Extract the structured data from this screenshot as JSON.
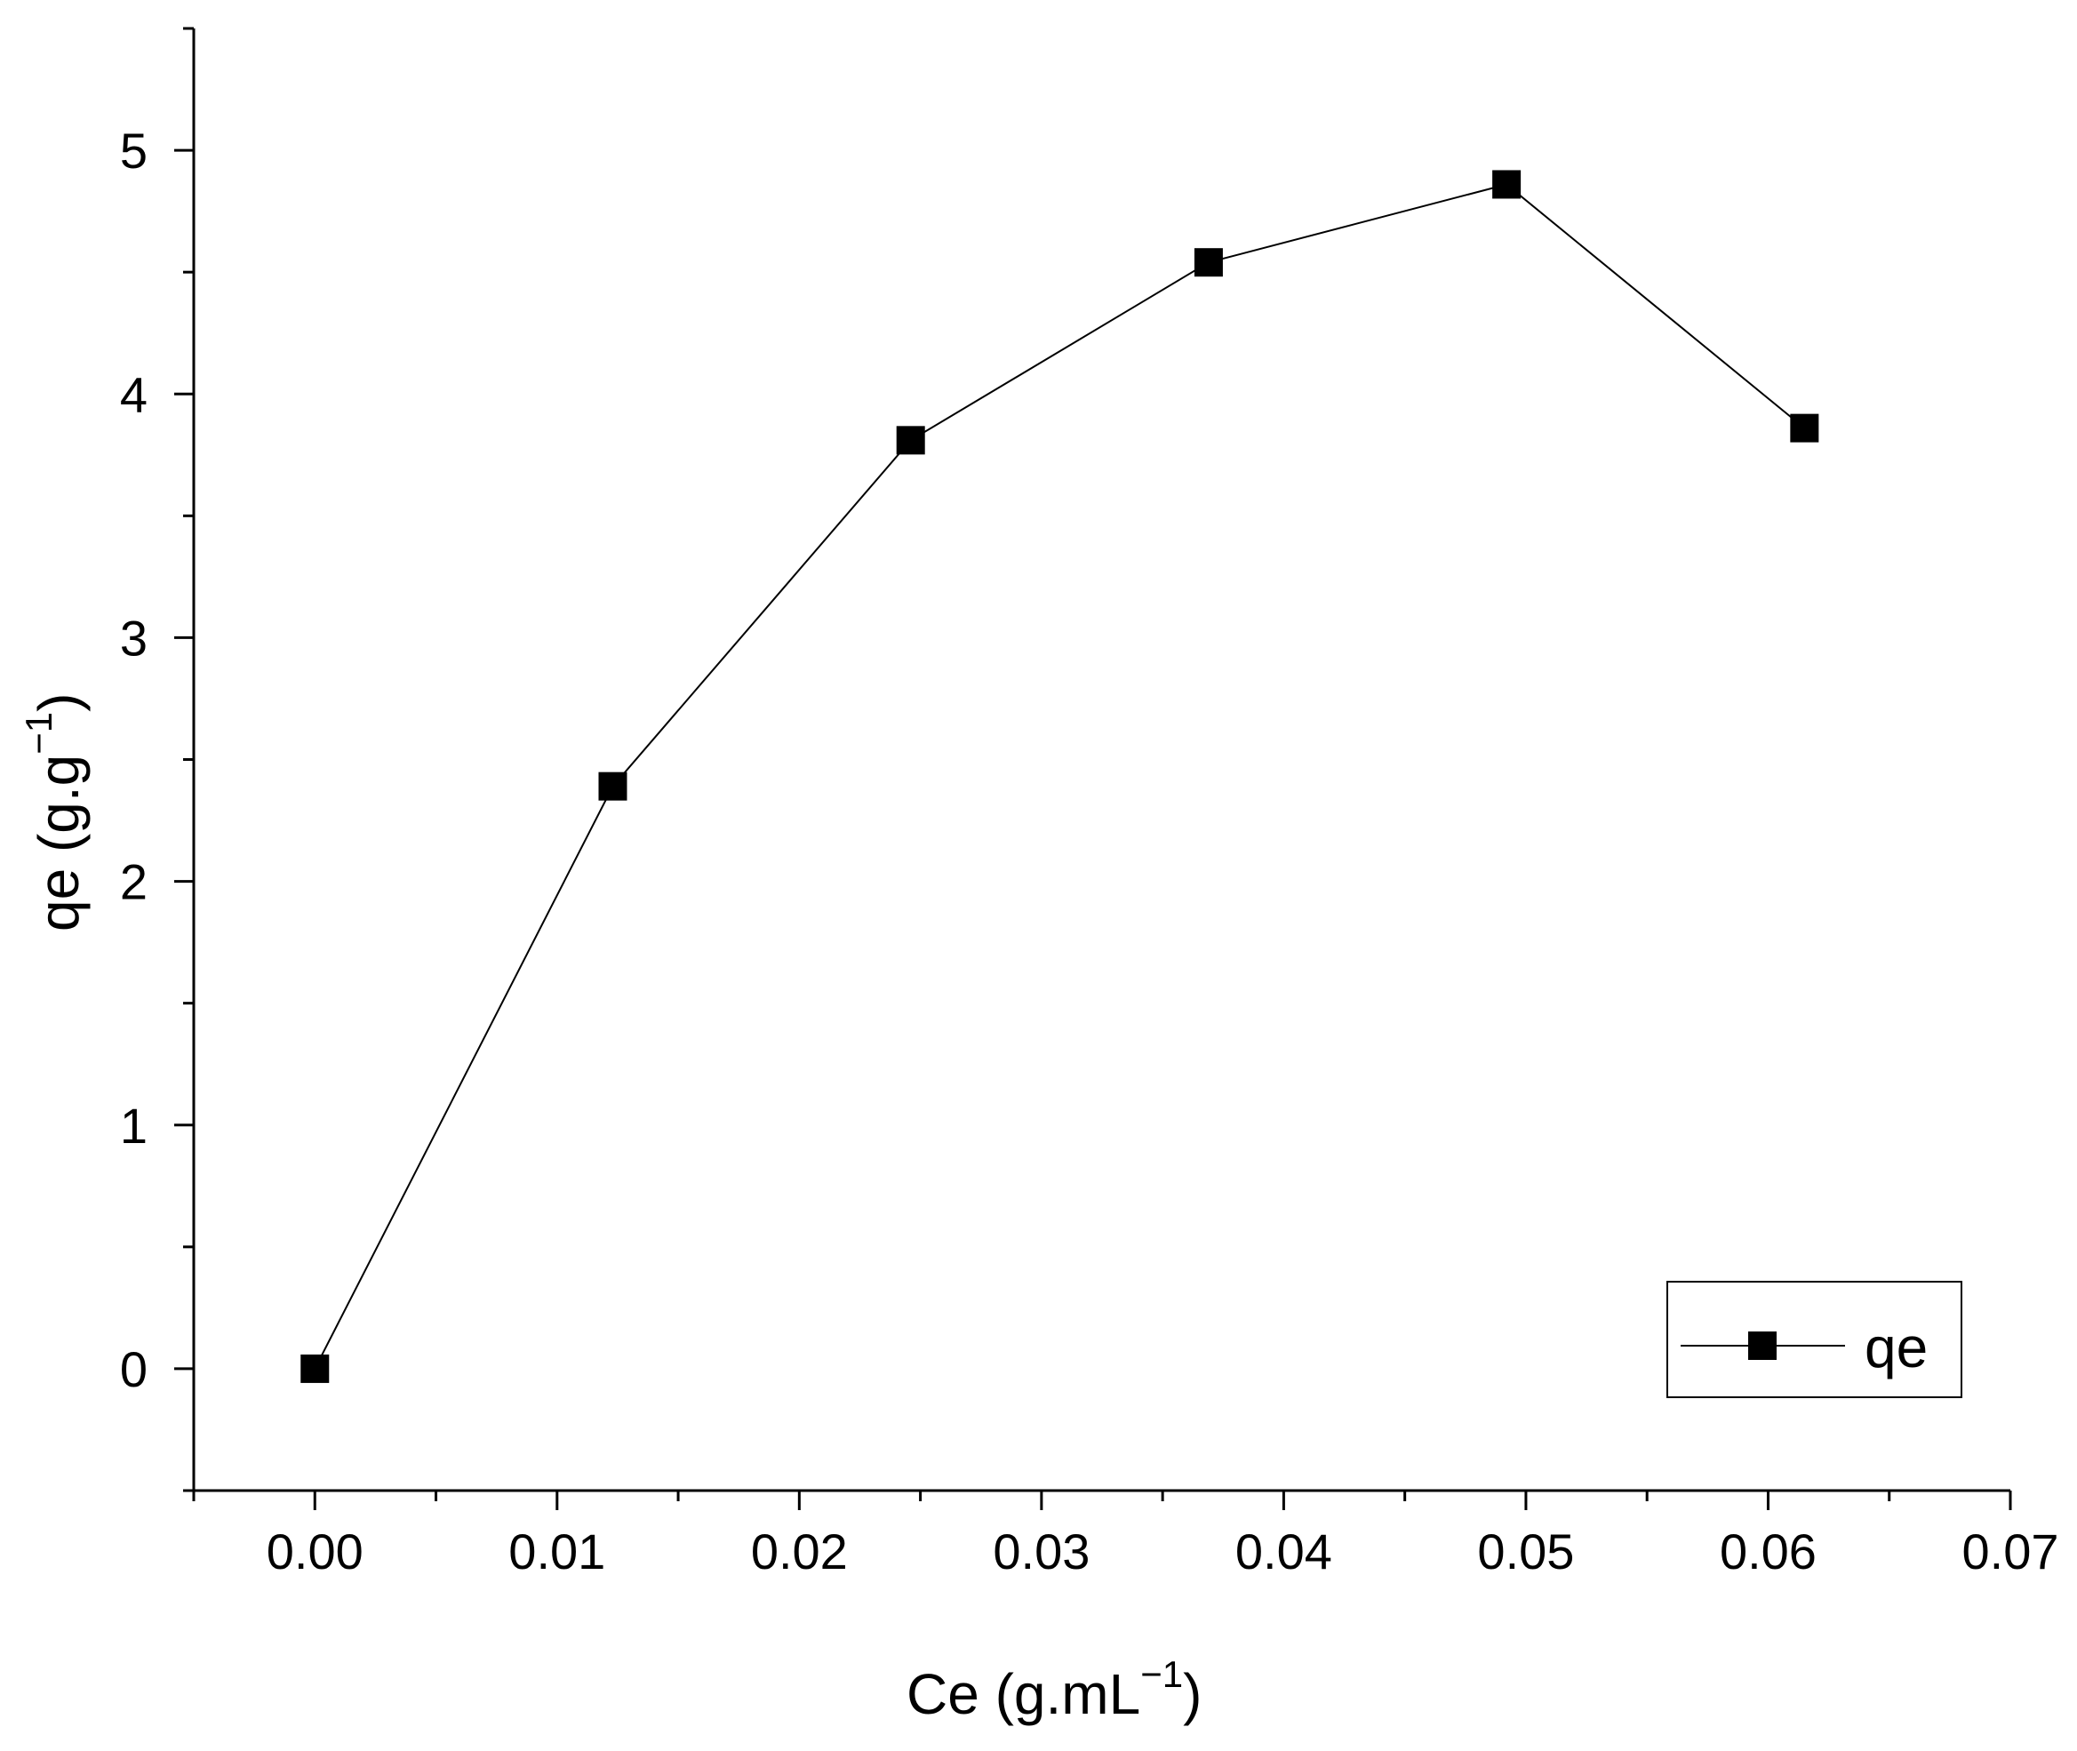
{
  "chart_data": {
    "type": "line",
    "xlabel": "Ce (g.mL",
    "xlabel_sup": "−1",
    "xlabel_close": ")",
    "ylabel": "qe (g.g",
    "ylabel_sup": "−1",
    "ylabel_close": ")",
    "xlim": [
      -0.005,
      0.07
    ],
    "ylim": [
      -0.5,
      5.5
    ],
    "x_ticks": [
      {
        "value": 0.0,
        "label": "0.00"
      },
      {
        "value": 0.01,
        "label": "0.01"
      },
      {
        "value": 0.02,
        "label": "0.02"
      },
      {
        "value": 0.03,
        "label": "0.03"
      },
      {
        "value": 0.04,
        "label": "0.04"
      },
      {
        "value": 0.05,
        "label": "0.05"
      },
      {
        "value": 0.06,
        "label": "0.06"
      },
      {
        "value": 0.07,
        "label": "0.07"
      }
    ],
    "y_ticks": [
      {
        "value": 0,
        "label": "0"
      },
      {
        "value": 1,
        "label": "1"
      },
      {
        "value": 2,
        "label": "2"
      },
      {
        "value": 3,
        "label": "3"
      },
      {
        "value": 4,
        "label": "4"
      },
      {
        "value": 5,
        "label": "5"
      }
    ],
    "series": [
      {
        "name": "qe",
        "marker": "square",
        "color": "#000000",
        "x": [
          0.0,
          0.0123,
          0.0246,
          0.0369,
          0.0492,
          0.0615
        ],
        "y": [
          0.0,
          2.39,
          3.81,
          4.54,
          4.86,
          3.86
        ]
      }
    ],
    "legend": {
      "position": "bottom-right",
      "label": "qe"
    },
    "grid": false
  }
}
